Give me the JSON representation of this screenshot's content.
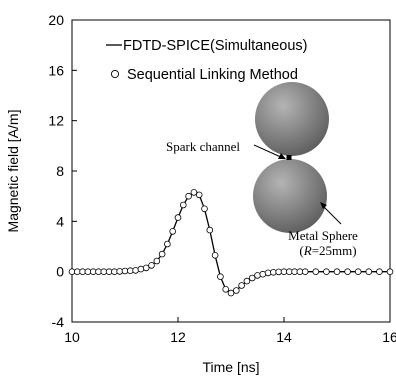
{
  "chart_data": {
    "type": "line",
    "xlabel": "Time [ns]",
    "ylabel": "Magnetic field [A/m]",
    "xlim": [
      10,
      16
    ],
    "ylim": [
      -4,
      20
    ],
    "xticks": [
      "10",
      "12",
      "14",
      "16"
    ],
    "yticks": [
      "-4",
      "0",
      "4",
      "8",
      "12",
      "16",
      "20"
    ],
    "grid": false,
    "legend_position": "top-left",
    "series": [
      {
        "name": "FDTD-SPICE(Simultaneous)",
        "style": "line",
        "color": "#000000",
        "x": [
          10.0,
          10.2,
          10.4,
          10.6,
          10.8,
          11.0,
          11.2,
          11.4,
          11.5,
          11.6,
          11.7,
          11.8,
          11.9,
          12.0,
          12.1,
          12.2,
          12.3,
          12.35,
          12.4,
          12.5,
          12.6,
          12.7,
          12.8,
          12.9,
          13.0,
          13.1,
          13.2,
          13.3,
          13.4,
          13.5,
          13.6,
          13.7,
          13.8,
          14.0,
          14.2,
          14.5,
          15.0,
          15.5,
          16.0
        ],
        "y": [
          0.0,
          0.0,
          0.0,
          0.0,
          0.0,
          0.05,
          0.1,
          0.3,
          0.5,
          0.85,
          1.4,
          2.2,
          3.2,
          4.3,
          5.3,
          6.0,
          6.3,
          6.35,
          6.1,
          5.0,
          3.3,
          1.3,
          -0.4,
          -1.4,
          -1.7,
          -1.5,
          -1.1,
          -0.75,
          -0.5,
          -0.3,
          -0.2,
          -0.1,
          -0.05,
          0.0,
          0.0,
          0.0,
          0.0,
          0.0,
          0.0
        ]
      },
      {
        "name": "Sequential Linking Method",
        "style": "markers",
        "marker": "open-circle",
        "color": "#000000",
        "x": [
          10.0,
          10.1,
          10.2,
          10.3,
          10.4,
          10.5,
          10.6,
          10.7,
          10.8,
          10.9,
          11.0,
          11.1,
          11.2,
          11.3,
          11.4,
          11.5,
          11.6,
          11.7,
          11.8,
          11.9,
          12.0,
          12.1,
          12.2,
          12.3,
          12.4,
          12.5,
          12.6,
          12.7,
          12.8,
          12.9,
          13.0,
          13.1,
          13.2,
          13.3,
          13.4,
          13.5,
          13.6,
          13.7,
          13.8,
          13.9,
          14.0,
          14.1,
          14.2,
          14.3,
          14.4,
          14.6,
          14.8,
          15.0,
          15.2,
          15.4,
          15.6,
          15.8,
          16.0
        ],
        "y": [
          0.0,
          0.0,
          0.0,
          0.0,
          0.0,
          0.0,
          0.0,
          0.0,
          0.0,
          0.02,
          0.05,
          0.08,
          0.1,
          0.2,
          0.3,
          0.5,
          0.85,
          1.4,
          2.2,
          3.2,
          4.3,
          5.3,
          6.0,
          6.3,
          6.1,
          5.0,
          3.3,
          1.3,
          -0.4,
          -1.4,
          -1.7,
          -1.5,
          -1.1,
          -0.75,
          -0.5,
          -0.3,
          -0.2,
          -0.1,
          -0.05,
          -0.02,
          0.0,
          0.0,
          0.0,
          0.0,
          0.0,
          0.0,
          0.0,
          0.0,
          0.0,
          0.0,
          0.0,
          0.0,
          0.0
        ]
      }
    ],
    "annotations": {
      "spark_label": "Spark channel",
      "sphere_label": "Metal Sphere",
      "sphere_radius_prefix": "(",
      "sphere_radius_var": "R",
      "sphere_radius_rest": "=25mm)"
    },
    "colors": {
      "sphere_light": "#b4b4b4",
      "sphere_dark": "#5a5a5a",
      "spark": "#000000"
    }
  }
}
